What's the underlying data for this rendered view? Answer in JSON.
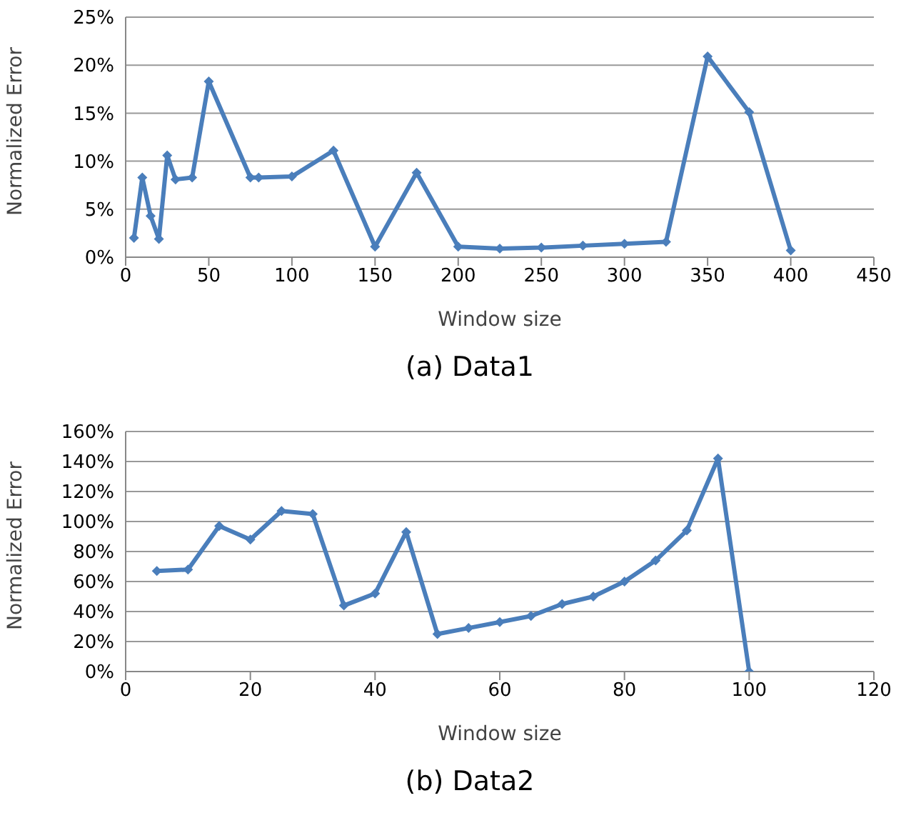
{
  "chart_data": [
    {
      "type": "line",
      "title": "(a) Data1",
      "xlabel": "Window size",
      "ylabel": "Normalized Error",
      "x": [
        5,
        10,
        15,
        20,
        25,
        30,
        40,
        50,
        75,
        80,
        100,
        125,
        150,
        175,
        200,
        225,
        250,
        275,
        300,
        325,
        350,
        375,
        400
      ],
      "series": [
        {
          "color": "#4a7ebb",
          "values": [
            2,
            8.3,
            4.3,
            1.9,
            10.6,
            8.1,
            8.3,
            18.3,
            8.3,
            8.3,
            8.4,
            11.1,
            1.1,
            8.8,
            1.1,
            0.9,
            1.0,
            1.2,
            1.4,
            1.6,
            20.9,
            15.1,
            0.7
          ]
        }
      ],
      "xlim": [
        0,
        450
      ],
      "xticks": [
        0,
        50,
        100,
        150,
        200,
        250,
        300,
        350,
        400,
        450
      ],
      "ylim": [
        0,
        25
      ],
      "yticks": [
        {
          "value": 0,
          "label": "0%"
        },
        {
          "value": 5,
          "label": "5%"
        },
        {
          "value": 10,
          "label": "10%"
        },
        {
          "value": 15,
          "label": "15%"
        },
        {
          "value": 20,
          "label": "20%"
        },
        {
          "value": 25,
          "label": "25%"
        }
      ],
      "grid": "y",
      "marker": "diamond",
      "line_style": "solid",
      "legend": false
    },
    {
      "type": "line",
      "title": "(b) Data2",
      "xlabel": "Window size",
      "ylabel": "Normalized Error",
      "x": [
        5,
        10,
        15,
        20,
        25,
        30,
        35,
        40,
        45,
        50,
        55,
        60,
        65,
        70,
        75,
        80,
        85,
        90,
        95,
        100
      ],
      "series": [
        {
          "color": "#4a7ebb",
          "values": [
            67,
            68,
            97,
            88,
            107,
            105,
            44,
            52,
            93,
            25,
            29,
            33,
            37,
            45,
            50,
            60,
            74,
            94,
            142,
            0
          ]
        }
      ],
      "xlim": [
        0,
        120
      ],
      "xticks": [
        0,
        20,
        40,
        60,
        80,
        100,
        120
      ],
      "ylim": [
        0,
        160
      ],
      "yticks": [
        {
          "value": 0,
          "label": "0%"
        },
        {
          "value": 20,
          "label": "20%"
        },
        {
          "value": 40,
          "label": "40%"
        },
        {
          "value": 60,
          "label": "60%"
        },
        {
          "value": 80,
          "label": "80%"
        },
        {
          "value": 100,
          "label": "100%"
        },
        {
          "value": 120,
          "label": "120%"
        },
        {
          "value": 140,
          "label": "140%"
        },
        {
          "value": 160,
          "label": "160%"
        }
      ],
      "grid": "y",
      "marker": "diamond",
      "line_style": "solid",
      "legend": false
    }
  ]
}
